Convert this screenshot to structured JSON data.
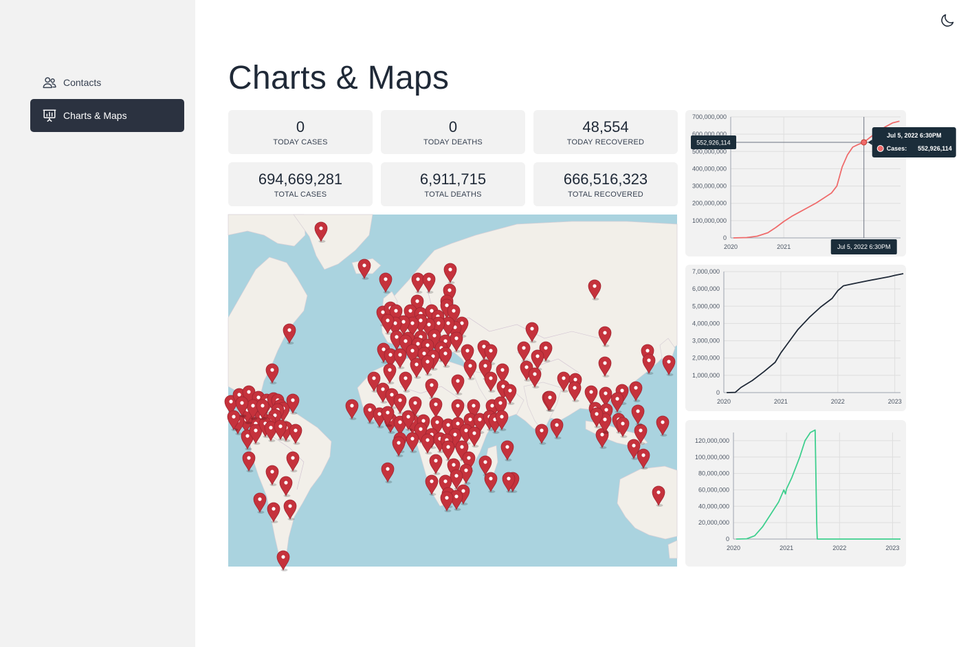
{
  "sidebar": {
    "items": [
      {
        "label": "Contacts",
        "icon": "users-icon",
        "active": false
      },
      {
        "label": "Charts & Maps",
        "icon": "presentation-chart-icon",
        "active": true
      }
    ]
  },
  "header": {
    "theme_toggle_icon": "moon-icon"
  },
  "page": {
    "title": "Charts & Maps"
  },
  "stats": [
    {
      "value": "0",
      "label": "TODAY CASES"
    },
    {
      "value": "0",
      "label": "TODAY DEATHS"
    },
    {
      "value": "48,554",
      "label": "TODAY RECOVERED"
    },
    {
      "value": "694,669,281",
      "label": "TOTAL CASES"
    },
    {
      "value": "6,911,715",
      "label": "TOTAL DEATHS"
    },
    {
      "value": "666,516,323",
      "label": "TOTAL RECOVERED"
    }
  ],
  "map": {
    "marker_icon": "map-pin-icon",
    "marker_color": "#c5323c",
    "water_color": "#aad3df",
    "land_color": "#f2efe9"
  },
  "chart_data": [
    {
      "type": "line",
      "color": "#ef6b6b",
      "ylim": [
        0,
        700000000
      ],
      "yticks": [
        0,
        100000000,
        200000000,
        300000000,
        400000000,
        500000000,
        600000000,
        700000000
      ],
      "ytick_labels": [
        "0",
        "100,000,000",
        "200,000,000",
        "300,000,000",
        "400,000,000",
        "500,000,000",
        "600,000,000",
        "700,000,000"
      ],
      "xlim": [
        2020,
        2023.2
      ],
      "xticks": [
        2020,
        2021
      ],
      "xtick_labels": [
        "2020",
        "2021"
      ],
      "x": [
        2020.05,
        2020.3,
        2020.5,
        2020.7,
        2020.85,
        2021.0,
        2021.15,
        2021.3,
        2021.45,
        2021.6,
        2021.75,
        2021.9,
        2022.0,
        2022.1,
        2022.2,
        2022.3,
        2022.4,
        2022.51,
        2022.6,
        2022.75,
        2022.9,
        2023.05,
        2023.18
      ],
      "y": [
        0,
        2000000,
        10000000,
        30000000,
        60000000,
        95000000,
        125000000,
        150000000,
        175000000,
        200000000,
        230000000,
        260000000,
        300000000,
        410000000,
        480000000,
        525000000,
        540000000,
        552926114,
        575000000,
        610000000,
        640000000,
        665000000,
        675000000
      ],
      "tooltip": {
        "x_label": "Jul 5, 2022 6:30PM",
        "y_label": "552,926,114",
        "title": "Jul 5, 2022 6:30PM",
        "series": "Cases:",
        "value": "552,926,114",
        "x": 2022.51,
        "y": 552926114
      }
    },
    {
      "type": "line",
      "color": "#1f2937",
      "ylim": [
        0,
        7000000
      ],
      "yticks": [
        0,
        1000000,
        2000000,
        3000000,
        4000000,
        5000000,
        6000000,
        7000000
      ],
      "ytick_labels": [
        "0",
        "1,000,000",
        "2,000,000",
        "3,000,000",
        "4,000,000",
        "5,000,000",
        "6,000,000",
        "7,000,000"
      ],
      "xlim": [
        2020,
        2023.1
      ],
      "xticks": [
        2020,
        2021,
        2022,
        2023
      ],
      "xtick_labels": [
        "2020",
        "2021",
        "2022",
        "2023"
      ],
      "x": [
        2020.05,
        2020.2,
        2020.3,
        2020.5,
        2020.7,
        2020.9,
        2021.0,
        2021.1,
        2021.3,
        2021.5,
        2021.7,
        2021.9,
        2022.0,
        2022.1,
        2022.3,
        2022.5,
        2022.7,
        2022.9,
        2023.0,
        2023.15
      ],
      "y": [
        0,
        10000,
        300000,
        700000,
        1200000,
        1750000,
        2300000,
        2750000,
        3650000,
        4350000,
        4950000,
        5450000,
        5900000,
        6180000,
        6320000,
        6450000,
        6580000,
        6700000,
        6780000,
        6880000
      ]
    },
    {
      "type": "line",
      "color": "#3ecf8e",
      "ylim": [
        0,
        130000000
      ],
      "yticks": [
        0,
        20000000,
        40000000,
        60000000,
        80000000,
        100000000,
        120000000
      ],
      "ytick_labels": [
        "0",
        "20,000,000",
        "40,000,000",
        "60,000,000",
        "80,000,000",
        "100,000,000",
        "120,000,000"
      ],
      "xlim": [
        2020,
        2023.15
      ],
      "xticks": [
        2020,
        2021,
        2022,
        2023
      ],
      "xtick_labels": [
        "2020",
        "2021",
        "2022",
        "2023"
      ],
      "x": [
        2020.05,
        2020.25,
        2020.4,
        2020.55,
        2020.7,
        2020.85,
        2020.95,
        2020.98,
        2021.0,
        2021.1,
        2021.25,
        2021.35,
        2021.45,
        2021.54,
        2021.57,
        2021.58,
        2021.7,
        2022.2,
        2022.8,
        2023.15
      ],
      "y": [
        0,
        300000,
        4000000,
        15000000,
        30000000,
        45000000,
        60000000,
        55000000,
        61000000,
        75000000,
        100000000,
        120000000,
        130000000,
        133000000,
        20000000,
        0,
        0,
        0,
        0,
        0
      ]
    }
  ]
}
